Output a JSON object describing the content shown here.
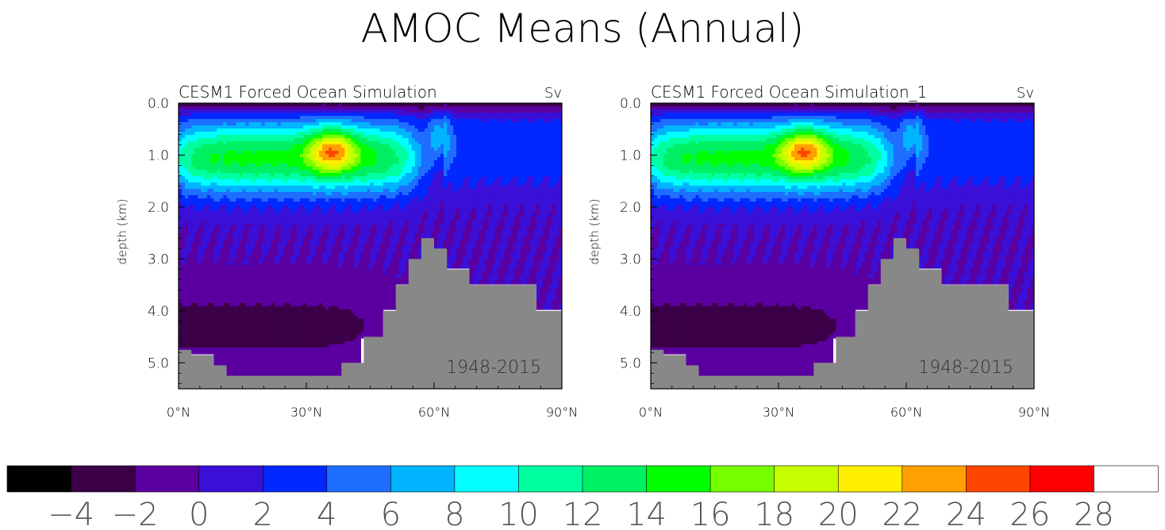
{
  "title": "AMOC Means (Annual)",
  "units": "Sv",
  "colors": {
    "land": "#888888",
    "levels": [
      "#000000",
      "#3b0047",
      "#5a00a0",
      "#3a10d8",
      "#0028ff",
      "#1e6eff",
      "#00b4ff",
      "#00ffff",
      "#00ffa0",
      "#00f064",
      "#00ff00",
      "#78ff00",
      "#c8ff00",
      "#ffee00",
      "#ffa000",
      "#ff4600",
      "#ff0000",
      "#ffffff"
    ]
  },
  "colorbar": {
    "tick_labels": [
      "-4",
      "-2",
      "0",
      "2",
      "4",
      "6",
      "8",
      "10",
      "12",
      "14",
      "16",
      "18",
      "20",
      "22",
      "24",
      "26",
      "28"
    ]
  },
  "chart_data": [
    {
      "type": "heatmap",
      "title": "CESM1 Forced Ocean Simulation",
      "units_label": "Sv",
      "period_label": "1948-2015",
      "ylabel": "depth (km)",
      "xlabel": "",
      "x_ticks": [
        "0°N",
        "30°N",
        "60°N",
        "90°N"
      ],
      "y_ticks": [
        "0.0",
        "1.0",
        "2.0",
        "3.0",
        "4.0",
        "5.0"
      ],
      "xlim": [
        0,
        90
      ],
      "ylim": [
        0,
        5.5
      ],
      "y_inverted": true,
      "max_value": 25,
      "max_location": {
        "lat": 35,
        "depth_km": 0.9
      },
      "contour_interval": 2
    },
    {
      "type": "heatmap",
      "title": "CESM1 Forced Ocean Simulation_1",
      "units_label": "Sv",
      "period_label": "1948-2015",
      "ylabel": "depth (km)",
      "xlabel": "",
      "x_ticks": [
        "0°N",
        "30°N",
        "60°N",
        "90°N"
      ],
      "y_ticks": [
        "0.0",
        "1.0",
        "2.0",
        "3.0",
        "4.0",
        "5.0"
      ],
      "xlim": [
        0,
        90
      ],
      "ylim": [
        0,
        5.5
      ],
      "y_inverted": true,
      "max_value": 25,
      "max_location": {
        "lat": 35,
        "depth_km": 0.9
      },
      "contour_interval": 2
    }
  ]
}
